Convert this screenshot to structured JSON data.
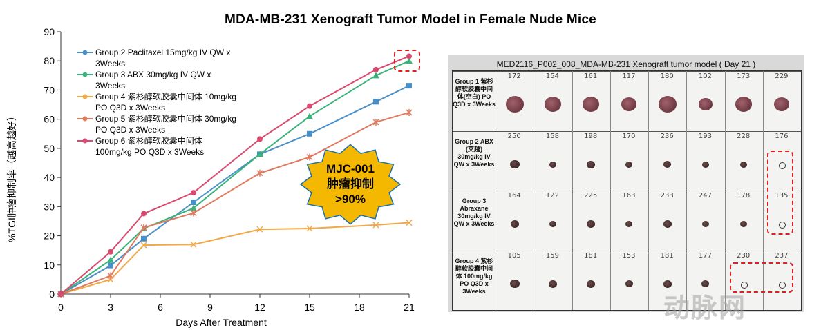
{
  "page": {
    "title": "MDA-MB-231 Xenograft Tumor Model in Female Nude Mice"
  },
  "chart_data": {
    "type": "line",
    "xlabel": "Days After Treatment",
    "ylabel": "%TGI肿瘤抑制率（越高越好）",
    "x": [
      0,
      3,
      5,
      8,
      12,
      15,
      19,
      21
    ],
    "xticks": [
      0,
      3,
      6,
      9,
      12,
      15,
      18,
      21
    ],
    "yticks": [
      0,
      10,
      20,
      30,
      40,
      50,
      60,
      70,
      80,
      90
    ],
    "xlim": [
      0,
      21
    ],
    "ylim": [
      0,
      90
    ],
    "grid": false,
    "legend_position": "top-left",
    "series": [
      {
        "name": "Group 2 Paclitaxel 15mg/kg IV QW x 3Weeks",
        "color": "#4a90c8",
        "marker": "square",
        "values": [
          0,
          9.8,
          19.0,
          31.5,
          48.0,
          55.0,
          66.0,
          71.5
        ]
      },
      {
        "name": "Group 3 ABX 30mg/kg IV QW x 3Weeks",
        "color": "#3bb27a",
        "marker": "triangle",
        "values": [
          0,
          11.7,
          22.5,
          29.5,
          48.0,
          61.0,
          75.0,
          80.0
        ]
      },
      {
        "name": "Group 4 紫杉醇软胶囊中间体 10mg/kg PO Q3D x 3Weeks",
        "color": "#f0a848",
        "marker": "x",
        "values": [
          0,
          5.0,
          16.8,
          17.0,
          22.2,
          22.5,
          23.7,
          24.5
        ]
      },
      {
        "name": "Group 5 紫杉醇软胶囊中间体 30mg/kg PO Q3D x 3Weeks",
        "color": "#e07a5f",
        "marker": "star",
        "values": [
          0,
          6.3,
          22.8,
          27.8,
          41.5,
          47.0,
          59.0,
          62.3
        ]
      },
      {
        "name": "Group 6 紫杉醇软胶囊中间体 100mg/kg PO Q3D x 3Weeks",
        "color": "#d94a6e",
        "marker": "circle",
        "values": [
          0,
          14.5,
          27.6,
          34.8,
          53.2,
          64.5,
          77.0,
          81.6
        ]
      }
    ]
  },
  "legend_lines": [
    [
      "Group 2 Paclitaxel 15mg/kg IV QW x",
      "3Weeks"
    ],
    [
      "Group 3 ABX 30mg/kg IV QW x",
      "3Weeks"
    ],
    [
      "Group 4 紫杉醇软胶囊中间体 10mg/kg",
      "PO Q3D x 3Weeks"
    ],
    [
      "Group 5 紫杉醇软胶囊中间体 30mg/kg",
      "PO Q3D x 3Weeks"
    ],
    [
      "Group 6 紫杉醇软胶囊中间体",
      "100mg/kg PO Q3D x 3Weeks"
    ]
  ],
  "badge": {
    "line1": "MJC-001",
    "line2": "肿瘤抑制",
    "line3": ">90%",
    "fill": "#f5b800"
  },
  "photo": {
    "title": "MED2116_P002_008_MDA-MB-231 Xenograft tumor model ( Day 21 )",
    "rows": [
      {
        "label": "Group 1 紫杉醇软胶囊中间体(空白) PO Q3D x 3Weeks",
        "numbers": [
          "172",
          "154",
          "161",
          "117",
          "180",
          "102",
          "173",
          "229"
        ]
      },
      {
        "label": "Group 2 ABX (艾越) 30mg/kg IV QW x 3Weeks",
        "numbers": [
          "250",
          "158",
          "198",
          "170",
          "236",
          "193",
          "228",
          "176"
        ]
      },
      {
        "label": "Group 3 Abraxane 30mg/kg IV QW x 3Weeks",
        "numbers": [
          "164",
          "122",
          "225",
          "163",
          "233",
          "247",
          "178",
          "135"
        ]
      },
      {
        "label": "Group 4 紫杉醇软胶囊中间体 100mg/kg PO Q3D x 3Weeks",
        "numbers": [
          "105",
          "159",
          "181",
          "153",
          "181",
          "177",
          "230",
          "237"
        ]
      }
    ]
  },
  "watermark": "动脉网"
}
